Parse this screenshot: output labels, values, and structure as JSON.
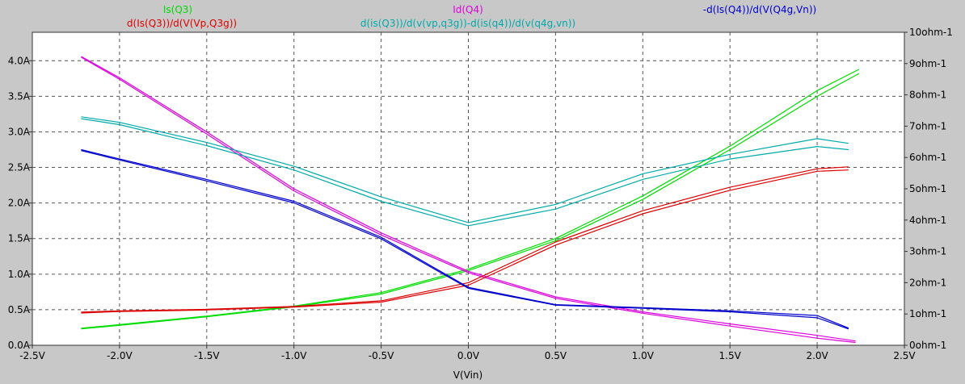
{
  "chart_data": {
    "type": "line",
    "xlabel": "V(Vin)",
    "x_ticks": [
      "-2.5V",
      "-2.0V",
      "-1.5V",
      "-1.0V",
      "-0.5V",
      "0.0V",
      "0.5V",
      "1.0V",
      "1.5V",
      "2.0V",
      "2.5V"
    ],
    "x_tick_values": [
      -2.5,
      -2.0,
      -1.5,
      -1.0,
      -0.5,
      0.0,
      0.5,
      1.0,
      1.5,
      2.0,
      2.5
    ],
    "xlim": [
      -2.5,
      2.5
    ],
    "y_left_ticks": [
      "0.0A",
      "0.5A",
      "1.0A",
      "1.5A",
      "2.0A",
      "2.5A",
      "3.0A",
      "3.5A",
      "4.0A"
    ],
    "y_left_tick_values": [
      0,
      0.5,
      1.0,
      1.5,
      2.0,
      2.5,
      3.0,
      3.5,
      4.0
    ],
    "y_left_lim": [
      0,
      4.4
    ],
    "y_right_ticks": [
      "0ohm-1",
      "1ohm-1",
      "2ohm-1",
      "3ohm-1",
      "4ohm-1",
      "5ohm-1",
      "6ohm-1",
      "7ohm-1",
      "8ohm-1",
      "9ohm-1",
      "10ohm-1"
    ],
    "y_right_tick_values": [
      0,
      1,
      2,
      3,
      4,
      5,
      6,
      7,
      8,
      9,
      10
    ],
    "y_right_lim": [
      0,
      10
    ],
    "grid": true,
    "legend": [
      {
        "text": "Is(Q3)",
        "color": "#00dd00"
      },
      {
        "text": "Id(Q4)",
        "color": "#dd00dd"
      },
      {
        "text": "d(Is(Q3))/d(V(Vp,Q3g))",
        "color": "#dd0000"
      },
      {
        "text": "d(is(Q3))/d(v(vp,q3g))-d(is(q4))/d(v(q4g,vn))",
        "color": "#00aaaa"
      },
      {
        "text": "-d(Is(Q4))/d(V(Q4g,Vn))",
        "color": "#0000cc"
      }
    ],
    "series": [
      {
        "name": "Is(Q3)",
        "color": "#00dd00",
        "axis": "left",
        "x": [
          -2.22,
          -2.0,
          -1.5,
          -1.0,
          -0.5,
          0.0,
          0.5,
          1.0,
          1.5,
          2.0,
          2.24
        ],
        "y": [
          0.24,
          0.29,
          0.41,
          0.55,
          0.74,
          1.07,
          1.5,
          2.1,
          2.8,
          3.58,
          3.88
        ],
        "y2": [
          0.23,
          0.28,
          0.4,
          0.54,
          0.72,
          1.05,
          1.47,
          2.05,
          2.75,
          3.5,
          3.82
        ]
      },
      {
        "name": "Id(Q4)",
        "color": "#dd00dd",
        "axis": "left",
        "x": [
          -2.22,
          -2.0,
          -1.5,
          -1.0,
          -0.5,
          0.0,
          0.5,
          1.0,
          1.5,
          2.0,
          2.22
        ],
        "y": [
          4.06,
          3.76,
          3.0,
          2.2,
          1.58,
          1.04,
          0.68,
          0.47,
          0.3,
          0.14,
          0.06
        ],
        "y2": [
          4.05,
          3.74,
          2.97,
          2.17,
          1.55,
          1.02,
          0.66,
          0.45,
          0.27,
          0.1,
          0.04
        ]
      },
      {
        "name": "d(Is(Q3))/d(V(Vp,Q3g))",
        "color": "#dd0000",
        "axis": "right",
        "x": [
          -2.22,
          -2.0,
          -1.5,
          -1.0,
          -0.5,
          0.0,
          0.5,
          1.0,
          1.5,
          2.0,
          2.18
        ],
        "y": [
          1.03,
          1.08,
          1.13,
          1.22,
          1.38,
          1.92,
          3.2,
          4.2,
          4.95,
          5.56,
          5.6
        ],
        "y2": [
          1.06,
          1.1,
          1.15,
          1.24,
          1.42,
          2.0,
          3.3,
          4.3,
          5.05,
          5.64,
          5.7
        ]
      },
      {
        "name": "d(is(Q3))/d(v(vp,q3g))-d(is(q4))/d(v(q4g,vn))",
        "color": "#00aaaa",
        "axis": "right",
        "x": [
          -2.22,
          -2.0,
          -1.5,
          -1.0,
          -0.5,
          0.0,
          0.5,
          1.0,
          1.5,
          2.0,
          2.18
        ],
        "y": [
          7.24,
          7.05,
          6.38,
          5.6,
          4.6,
          3.82,
          4.35,
          5.3,
          5.95,
          6.35,
          6.25
        ],
        "y2": [
          7.3,
          7.12,
          6.48,
          5.72,
          4.74,
          3.92,
          4.5,
          5.48,
          6.1,
          6.6,
          6.45
        ]
      },
      {
        "name": "-d(Is(Q4))/d(V(Q4g,Vn))",
        "color": "#0000cc",
        "axis": "right",
        "x": [
          -2.22,
          -2.0,
          -1.5,
          -1.0,
          -0.5,
          0.0,
          0.5,
          1.0,
          1.5,
          2.0,
          2.18
        ],
        "y": [
          6.25,
          5.95,
          5.3,
          4.6,
          3.45,
          1.85,
          1.3,
          1.2,
          1.1,
          0.95,
          0.55
        ],
        "y2": [
          6.22,
          5.92,
          5.25,
          4.55,
          3.4,
          1.82,
          1.28,
          1.18,
          1.07,
          0.88,
          0.52
        ]
      }
    ]
  }
}
